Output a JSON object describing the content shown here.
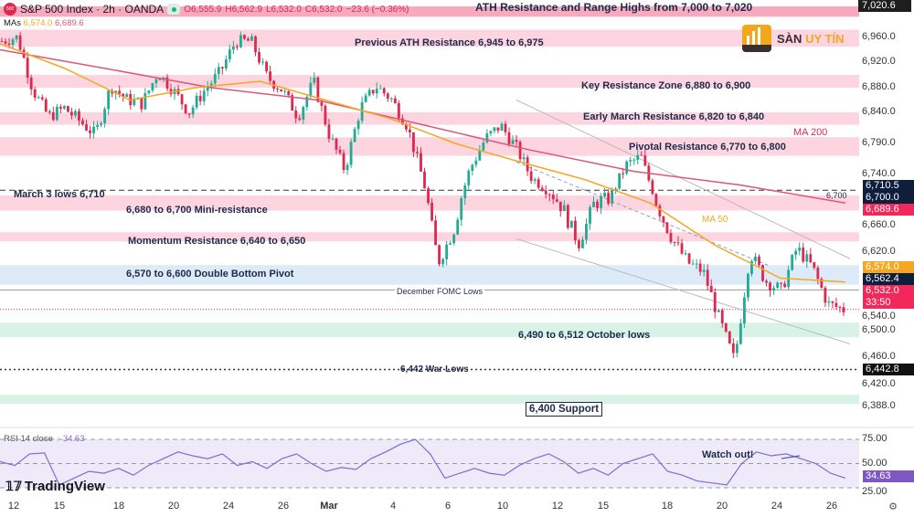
{
  "header": {
    "symbol": "S&P 500 Index · 2h · OANDA",
    "logo_text": "500",
    "open": "O6,555.9",
    "high": "H6,562.9",
    "low": "L6,532.0",
    "close": "C6,532.0",
    "change": "−23.6 (−0.36%)"
  },
  "mas": {
    "label": "MAs",
    "ma50": "6,574.0",
    "ma200": "6,689.6"
  },
  "brand": {
    "name_a": "SÀN",
    "name_b": "UY TÍN"
  },
  "footer": {
    "tradingview": "TradingView"
  },
  "colors": {
    "resistance": "#fcd5e0",
    "ath": "#f7a9bd",
    "pivot": "#dcebf7",
    "support": "#d8f3e6",
    "ma50": "#f5a623",
    "ma200": "#e0557a",
    "candle_up": "#22ab94",
    "candle_down": "#e0284f",
    "rsi": "#7e6ecc"
  },
  "price_axis": [
    "7,020.6",
    "6,960.0",
    "6,920.0",
    "6,880.0",
    "6,840.0",
    "6,790.0",
    "6,740.0",
    "6,660.0",
    "6,620.0",
    "6,540.0",
    "6,500.0",
    "6,460.0",
    "6,420.0",
    "6,388.0"
  ],
  "price_tags": [
    {
      "v": "6,710.5",
      "c": "#0f1e3d"
    },
    {
      "v": "6,700.0",
      "c": "#0f1e3d"
    },
    {
      "v": "6,689.6",
      "c": "#f2285a"
    },
    {
      "v": "6,574.0",
      "c": "#f5a623"
    },
    {
      "v": "6,562.4",
      "c": "#0f1e3d"
    },
    {
      "v": "6,532.0",
      "c": "#f2285a"
    },
    {
      "v": "33:50",
      "c": "#f2285a"
    },
    {
      "v": "6,442.8",
      "c": "#111"
    }
  ],
  "rsi": {
    "label": "RSI 14 close",
    "value": "34.63",
    "levels": [
      "75.00",
      "50.00",
      "25.00"
    ],
    "annotation": "Watch out!"
  },
  "x_axis": [
    "12",
    "15",
    "18",
    "20",
    "24",
    "26",
    "Mar",
    "4",
    "6",
    "10",
    "12",
    "15",
    "18",
    "20",
    "24",
    "26"
  ],
  "annotations": {
    "ath": "ATH Resistance and Range Highs from 7,000 to 7,020",
    "prev_ath": "Previous ATH Resistance 6,945 to 6,975",
    "key": "Key Resistance Zone 6,880 to 6,900",
    "early_march": "Early March Resistance 6,820 to 6,840",
    "pivotal": "Pivotal Resistance 6,770 to 6,800",
    "march3": "March 3 lows 6,710",
    "march3_tag": "6,700",
    "mini": "6,680 to 6,700 Mini-resistance",
    "momentum": "Momentum Resistance 6,640 to 6,650",
    "double_bottom": "6,570 to 6,600 Double Bottom Pivot",
    "fomc": "December FOMC Lows",
    "october": "6,490 to 6,512 October lows",
    "war": "6,442 War Lows",
    "support": "6,400 Support",
    "ma200": "MA 200",
    "ma50": "MA 50"
  },
  "chart_data": {
    "type": "candlestick",
    "zones": [
      {
        "from": 7000,
        "to": 7020,
        "kind": "ath"
      },
      {
        "from": 6945,
        "to": 6975,
        "kind": "resistance"
      },
      {
        "from": 6880,
        "to": 6900,
        "kind": "resistance"
      },
      {
        "from": 6820,
        "to": 6840,
        "kind": "resistance"
      },
      {
        "from": 6770,
        "to": 6800,
        "kind": "resistance"
      },
      {
        "from": 6680,
        "to": 6700,
        "kind": "resistance"
      },
      {
        "from": 6640,
        "to": 6650,
        "kind": "resistance"
      },
      {
        "from": 6570,
        "to": 6600,
        "kind": "pivot"
      },
      {
        "from": 6490,
        "to": 6512,
        "kind": "support"
      },
      {
        "from": 6395,
        "to": 6405,
        "kind": "support"
      }
    ],
    "lines": [
      {
        "price": 6710,
        "style": "dashed"
      },
      {
        "price": 6562,
        "style": "solid"
      },
      {
        "price": 6442,
        "style": "dotted"
      },
      {
        "price": 6532,
        "style": "current"
      }
    ],
    "closes": [
      6954,
      6961,
      6876,
      6833,
      6847,
      6826,
      6804,
      6883,
      6861,
      6854,
      6904,
      6876,
      6840,
      6876,
      6904,
      6954,
      6954,
      6897,
      6876,
      6833,
      6890,
      6804,
      6747,
      6847,
      6883,
      6861,
      6819,
      6733,
      6604,
      6654,
      6747,
      6797,
      6819,
      6783,
      6733,
      6711,
      6683,
      6633,
      6690,
      6697,
      6754,
      6769,
      6690,
      6640,
      6604,
      6590,
      6519,
      6454,
      6619,
      6576,
      6561,
      6626,
      6597,
      6540,
      6532
    ],
    "ma50": [
      6950,
      6910,
      6860,
      6880,
      6890,
      6860,
      6830,
      6790,
      6760,
      6730,
      6690,
      6630,
      6580,
      6574
    ],
    "ma200": [
      6940,
      6910,
      6880,
      6860,
      6820,
      6780,
      6745,
      6720,
      6690
    ],
    "rsi": [
      52,
      48,
      60,
      61,
      28,
      35,
      42,
      40,
      45,
      38,
      48,
      55,
      62,
      58,
      55,
      60,
      48,
      52,
      45,
      55,
      60,
      50,
      42,
      46,
      44,
      55,
      62,
      70,
      75,
      60,
      35,
      40,
      45,
      40,
      38,
      48,
      55,
      60,
      52,
      40,
      45,
      38,
      50,
      55,
      60,
      42,
      38,
      32,
      30,
      28,
      50,
      62,
      58,
      60,
      55,
      50,
      40,
      35
    ],
    "rsi_levels": [
      75,
      50,
      25
    ],
    "channels": [
      {
        "from": [
          6860,
          6610
        ],
        "to": [
          6740,
          6665
        ]
      },
      {
        "from": [
          6640,
          6480
        ],
        "to": [
          6540,
          6440
        ]
      }
    ]
  }
}
